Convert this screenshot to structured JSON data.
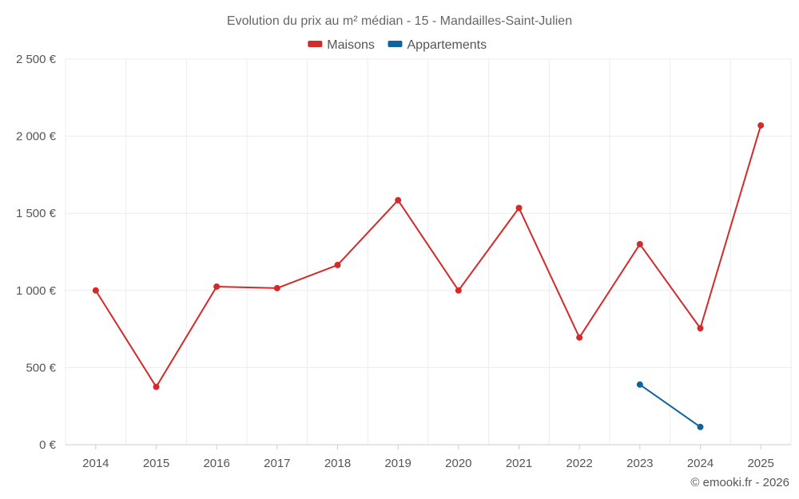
{
  "chart_data": {
    "type": "line",
    "title": "Evolution du prix au m² médian - 15 - Mandailles-Saint-Julien",
    "categories": [
      "2014",
      "2015",
      "2016",
      "2017",
      "2018",
      "2019",
      "2020",
      "2021",
      "2022",
      "2023",
      "2024",
      "2025"
    ],
    "ylim": [
      0,
      2500
    ],
    "yticks": [
      0,
      500,
      1000,
      1500,
      2000,
      2500
    ],
    "ytick_labels": [
      "0 €",
      "500 €",
      "1 000 €",
      "1 500 €",
      "2 000 €",
      "2 500 €"
    ],
    "grid": true,
    "legend_position": "top-center",
    "series": [
      {
        "name": "Maisons",
        "color": "#d32a2a",
        "values": [
          1000,
          375,
          1025,
          1015,
          1165,
          1585,
          1000,
          1535,
          695,
          1300,
          755,
          2070
        ]
      },
      {
        "name": "Appartements",
        "color": "#0e6499",
        "values": [
          null,
          null,
          null,
          null,
          null,
          null,
          null,
          null,
          null,
          390,
          115,
          null
        ]
      }
    ]
  },
  "credit": "© emooki.fr - 2026"
}
